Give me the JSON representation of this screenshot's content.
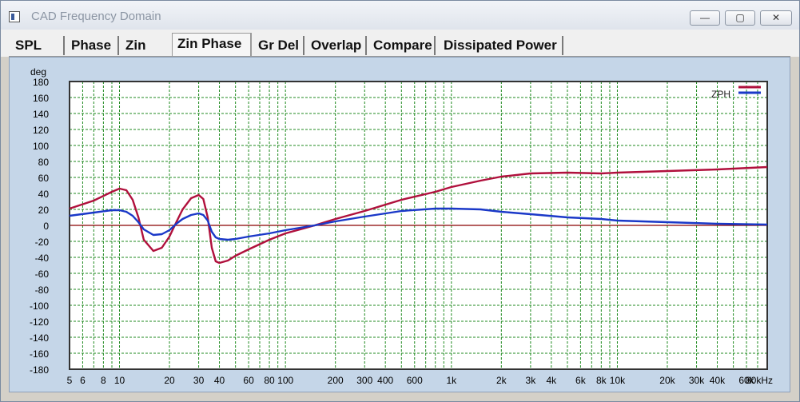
{
  "window": {
    "title": "CAD Frequency Domain",
    "controls": {
      "minimize": "—",
      "maximize": "▢",
      "close": "✕"
    }
  },
  "tabs": [
    "SPL",
    "Phase",
    "Zin",
    "Zin Phase",
    "Gr Del",
    "Overlap",
    "Compare",
    "Dissipated Power"
  ],
  "active_tab": "Zin Phase",
  "colors": {
    "grid": "#1f8a1f",
    "zero_line": "#8b0000",
    "series_red": "#b0103c",
    "series_blue": "#1a38c8",
    "plot_bg": "#ffffff",
    "panel_bg": "#c5d6e8"
  },
  "chart_data": {
    "type": "line",
    "x_scale": "log",
    "xlim": [
      5,
      80000
    ],
    "ylim": [
      -180,
      180
    ],
    "yunit": "deg",
    "y_ticks": [
      180,
      160,
      140,
      120,
      100,
      80,
      60,
      40,
      20,
      0,
      -20,
      -40,
      -60,
      -80,
      -100,
      -120,
      -140,
      -160,
      -180
    ],
    "x_tick_labels": [
      {
        "v": 5,
        "label": "5"
      },
      {
        "v": 6,
        "label": "6"
      },
      {
        "v": 8,
        "label": "8"
      },
      {
        "v": 10,
        "label": "10"
      },
      {
        "v": 20,
        "label": "20"
      },
      {
        "v": 30,
        "label": "30"
      },
      {
        "v": 40,
        "label": "40"
      },
      {
        "v": 60,
        "label": "60"
      },
      {
        "v": 80,
        "label": "80"
      },
      {
        "v": 100,
        "label": "100"
      },
      {
        "v": 200,
        "label": "200"
      },
      {
        "v": 300,
        "label": "300"
      },
      {
        "v": 400,
        "label": "400"
      },
      {
        "v": 600,
        "label": "600"
      },
      {
        "v": 1000,
        "label": "1k"
      },
      {
        "v": 2000,
        "label": "2k"
      },
      {
        "v": 3000,
        "label": "3k"
      },
      {
        "v": 4000,
        "label": "4k"
      },
      {
        "v": 6000,
        "label": "6k"
      },
      {
        "v": 8000,
        "label": "8k"
      },
      {
        "v": 10000,
        "label": "10k"
      },
      {
        "v": 20000,
        "label": "20k"
      },
      {
        "v": 30000,
        "label": "30k"
      },
      {
        "v": 40000,
        "label": "40k"
      },
      {
        "v": 60000,
        "label": "60k"
      },
      {
        "v": 80000,
        "label": "80kHz"
      }
    ],
    "legend": {
      "label": "ZPH",
      "position": "top-right"
    },
    "grid": true,
    "series": [
      {
        "color": "#b0103c",
        "x": [
          5,
          7,
          9,
          10,
          11,
          12,
          13,
          14,
          16,
          18,
          20,
          22,
          24,
          27,
          30,
          32,
          34,
          36,
          38,
          40,
          45,
          50,
          60,
          80,
          100,
          150,
          200,
          300,
          500,
          800,
          1000,
          1500,
          2000,
          3000,
          5000,
          8000,
          10000,
          20000,
          40000,
          80000
        ],
        "y": [
          21,
          31,
          42,
          46,
          44,
          32,
          10,
          -18,
          -32,
          -28,
          -14,
          4,
          20,
          34,
          38,
          33,
          10,
          -28,
          -45,
          -47,
          -44,
          -38,
          -30,
          -18,
          -10,
          0,
          8,
          18,
          32,
          42,
          48,
          56,
          61,
          65,
          66,
          65,
          66,
          68,
          70,
          73
        ]
      },
      {
        "color": "#1a38c8",
        "x": [
          5,
          7,
          9,
          10,
          11,
          12,
          13,
          14,
          16,
          18,
          20,
          22,
          24,
          27,
          30,
          32,
          34,
          36,
          38,
          40,
          45,
          50,
          60,
          80,
          100,
          150,
          200,
          300,
          500,
          800,
          1000,
          1500,
          2000,
          3000,
          5000,
          8000,
          10000,
          20000,
          40000,
          80000
        ],
        "y": [
          12,
          16,
          19,
          19,
          17,
          12,
          4,
          -5,
          -12,
          -11,
          -6,
          2,
          8,
          13,
          15,
          13,
          6,
          -8,
          -15,
          -17,
          -18,
          -17,
          -14,
          -10,
          -6,
          0,
          5,
          11,
          18,
          21,
          21,
          20,
          17,
          14,
          10,
          8,
          6,
          4,
          2,
          1
        ]
      }
    ]
  }
}
